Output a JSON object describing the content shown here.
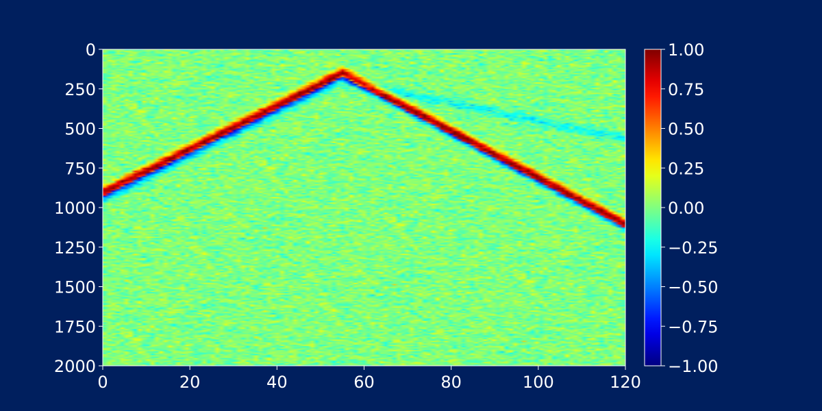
{
  "chart_data": {
    "type": "heatmap",
    "title": "",
    "xlabel": "",
    "ylabel": "",
    "description_values": "seismic shot gather: amplitude (-1 to 1) vs trace index (x) and time sample (y)",
    "x_range": [
      0,
      120
    ],
    "y_range": [
      0,
      2000
    ],
    "y_inverted": true,
    "x_ticks": [
      0,
      20,
      40,
      60,
      80,
      100,
      120
    ],
    "y_ticks": [
      0,
      250,
      500,
      750,
      1000,
      1250,
      1500,
      1750,
      2000
    ],
    "colormap": "jet",
    "color_range": [
      -1.0,
      1.0
    ],
    "colorbar_ticks": [
      "1.00",
      "0.75",
      "0.50",
      "0.25",
      "0.00",
      "−0.25",
      "−0.50",
      "−0.75",
      "−1.00"
    ],
    "colorbar_values": [
      1.0,
      0.75,
      0.5,
      0.25,
      0.0,
      -0.25,
      -0.5,
      -0.75,
      -1.0
    ],
    "events": [
      {
        "name": "direct-arrival",
        "apex_trace": 55,
        "apex_time": 150,
        "left_edge_time": 900,
        "right_edge_time": 1100,
        "polarity": "red-leading, blue-trailing"
      },
      {
        "name": "faint-reflection",
        "apex_trace": 55,
        "apex_time": 200,
        "left_edge_time": 950,
        "right_edge_time": 560
      }
    ],
    "grid": false,
    "legend": "colorbar-right"
  },
  "colors": {
    "background": "#001f5e",
    "text": "#ffffff"
  }
}
